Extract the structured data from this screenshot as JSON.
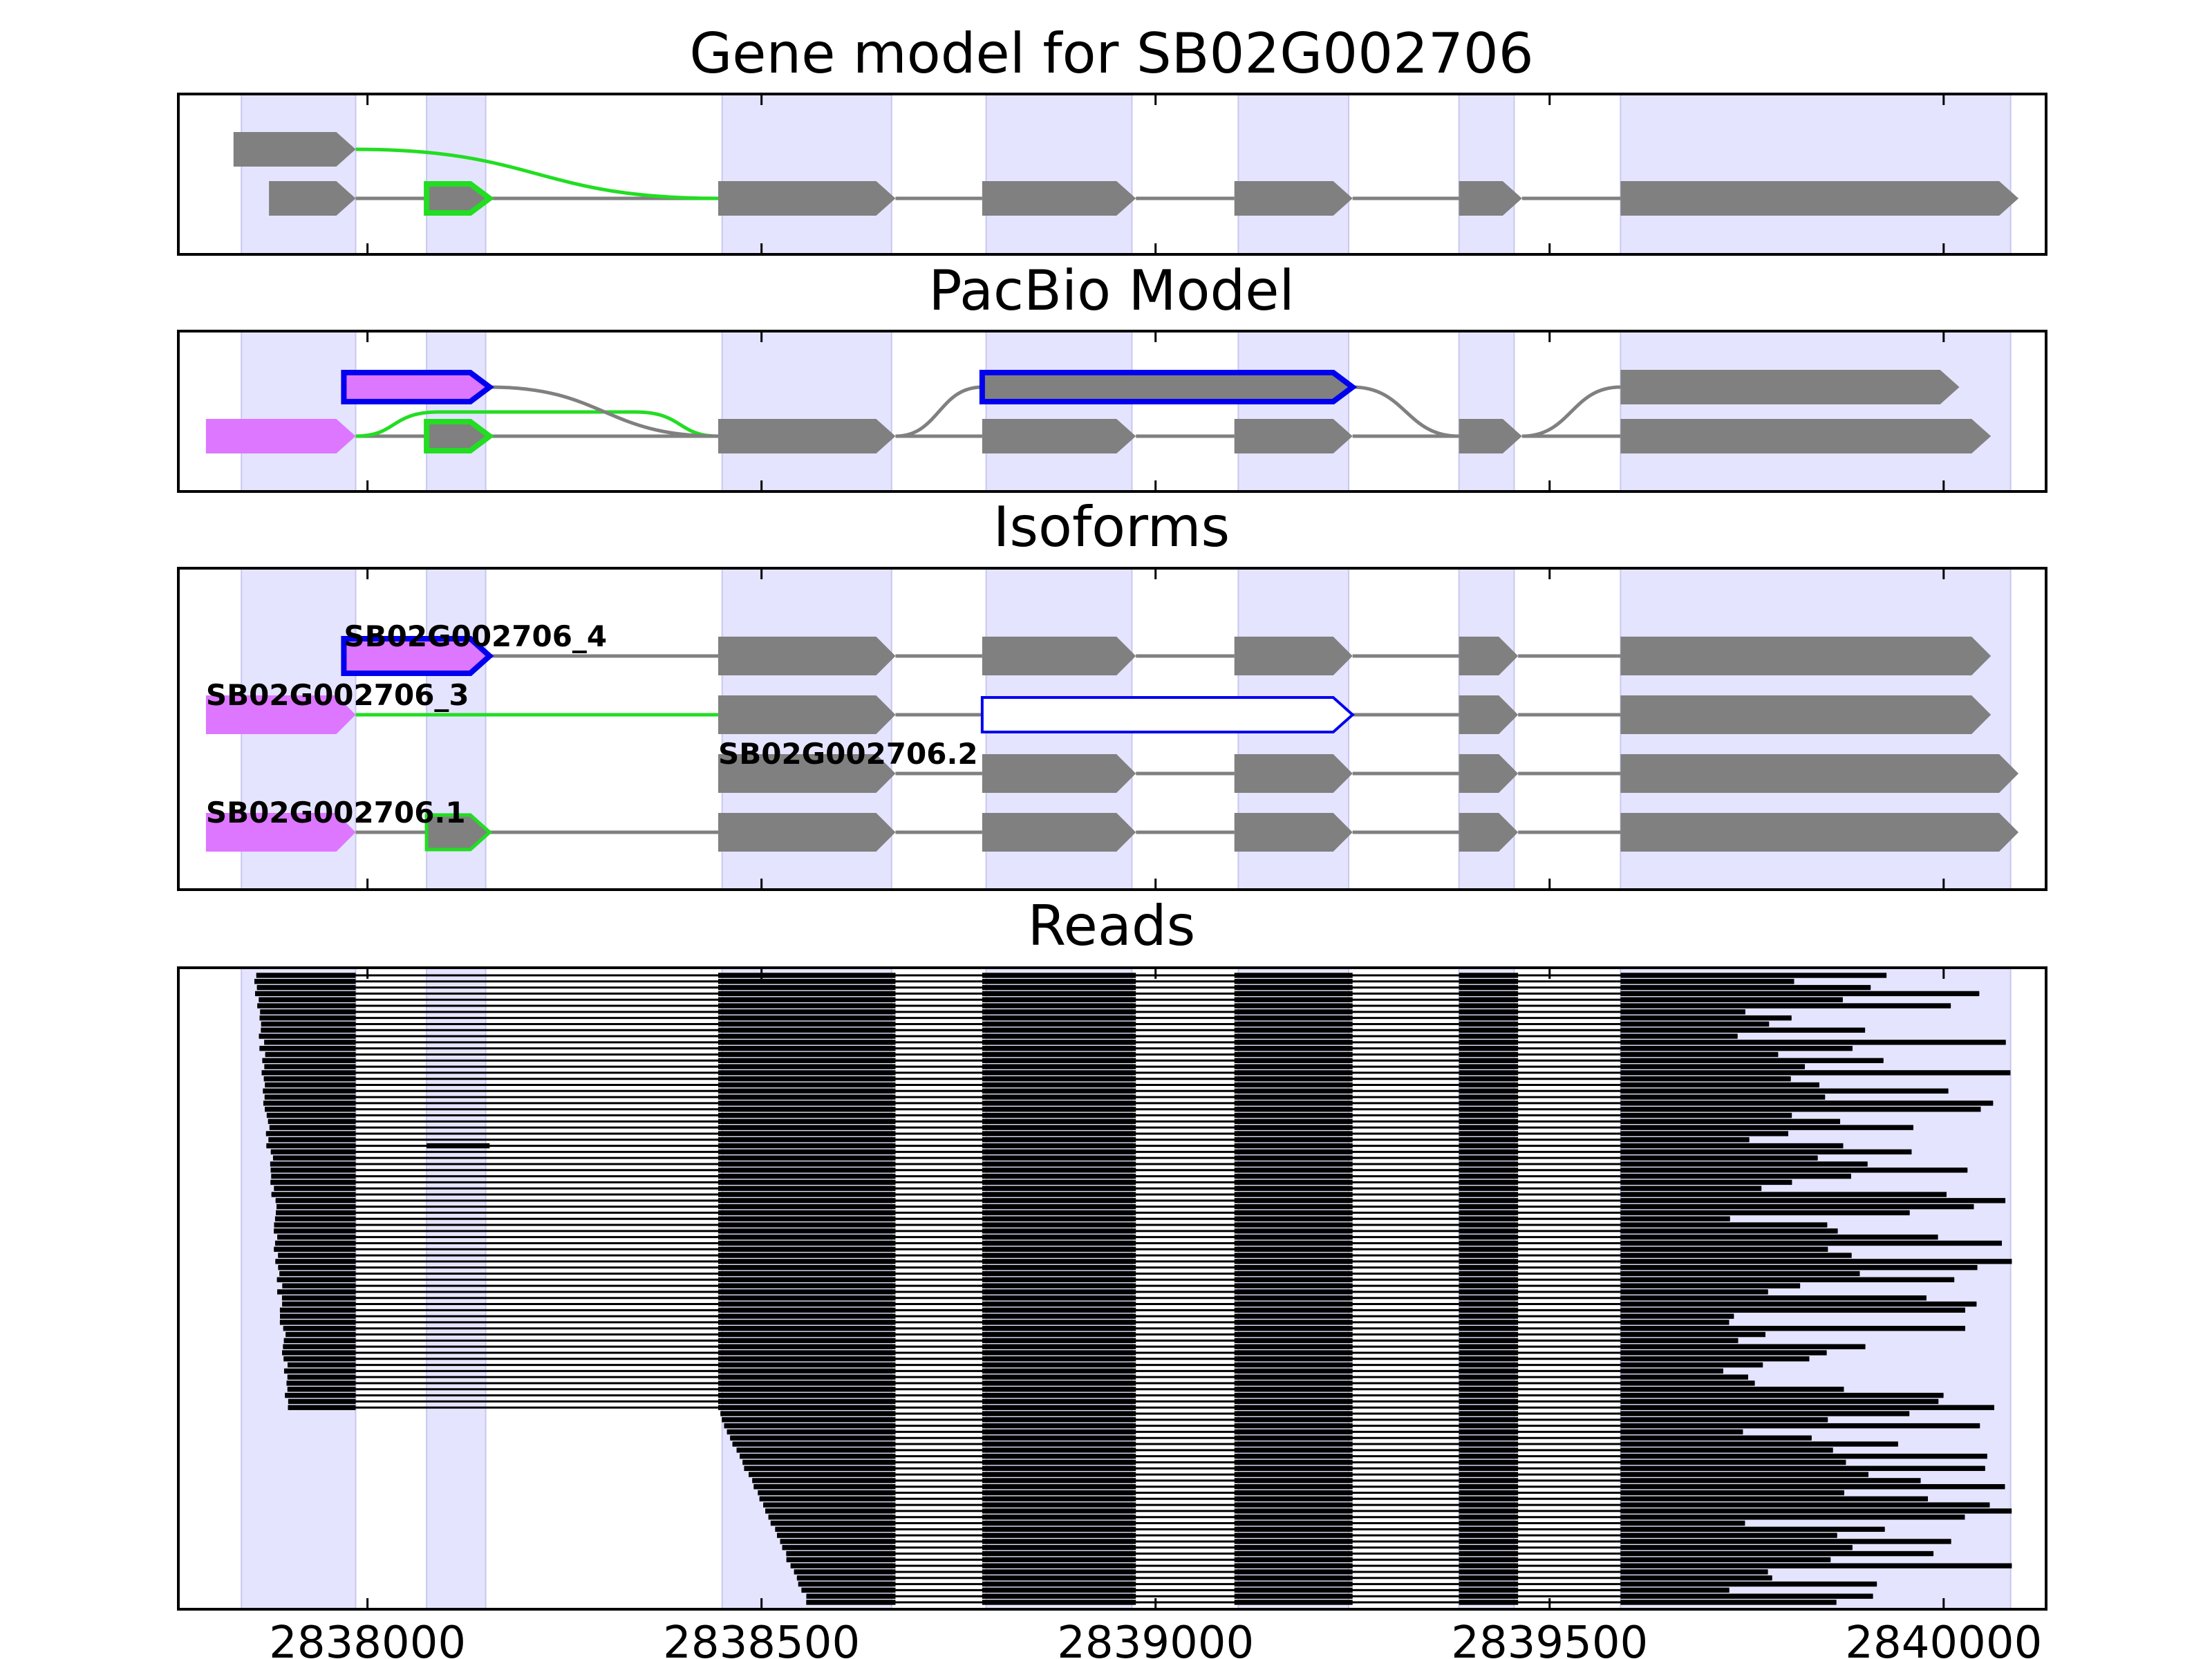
{
  "figure": {
    "panels": [
      {
        "id": "gene-model",
        "title": "Gene model for SB02G002706"
      },
      {
        "id": "pacbio",
        "title": "PacBio Model"
      },
      {
        "id": "isoforms",
        "title": "Isoforms"
      },
      {
        "id": "reads",
        "title": "Reads"
      }
    ],
    "xaxis": {
      "ticks": [
        2838000,
        2838500,
        2839000,
        2839500,
        2840000
      ],
      "xlim": [
        2837760,
        2840130
      ]
    },
    "colors": {
      "exon": "#808080",
      "highlight": "#e4e4ff",
      "green": "#22dd22",
      "blue": "#0000ee",
      "pink": "#dd77ff",
      "read": "#000000"
    }
  },
  "chart_data": {
    "type": "gene-structure",
    "highlighted_regions": [
      [
        2837840,
        2837985
      ],
      [
        2838075,
        2838150
      ],
      [
        2838450,
        2838665
      ],
      [
        2838785,
        2838970
      ],
      [
        2839105,
        2839245
      ],
      [
        2839385,
        2839455
      ],
      [
        2839590,
        2840085
      ]
    ],
    "gene_model": [
      {
        "exons": [
          [
            2837830,
            2837985
          ]
        ],
        "strand": "+"
      },
      {
        "exons": [
          [
            2837875,
            2837985
          ],
          [
            2838075,
            2838155
          ],
          [
            2838445,
            2838670
          ],
          [
            2838780,
            2838975
          ],
          [
            2839100,
            2839250
          ],
          [
            2839385,
            2839465
          ],
          [
            2839590,
            2840095
          ]
        ],
        "strand": "+"
      }
    ],
    "pacbio_model": [
      {
        "exons": [
          [
            2837970,
            2838155
          ],
          [
            2838780,
            2839250
          ],
          [
            2839590,
            2840020
          ]
        ]
      },
      {
        "exons": [
          [
            2837795,
            2837985
          ],
          [
            2838075,
            2838155
          ],
          [
            2838445,
            2838670
          ],
          [
            2838780,
            2838975
          ],
          [
            2839100,
            2839250
          ],
          [
            2839385,
            2839465
          ],
          [
            2839590,
            2840060
          ]
        ]
      }
    ],
    "isoforms": [
      {
        "name": "SB02G002706_4",
        "exons": [
          [
            2837970,
            2838155
          ],
          [
            2838445,
            2838670
          ],
          [
            2838780,
            2838975
          ],
          [
            2839100,
            2839250
          ],
          [
            2839385,
            2839460
          ],
          [
            2839590,
            2840060
          ]
        ]
      },
      {
        "name": "SB02G002706_3",
        "exons": [
          [
            2837795,
            2837985
          ],
          [
            2838445,
            2838670
          ],
          [
            2838780,
            2839250
          ],
          [
            2839385,
            2839460
          ],
          [
            2839590,
            2840060
          ]
        ]
      },
      {
        "name": "SB02G002706.2",
        "exons": [
          [
            2838445,
            2838670
          ],
          [
            2838780,
            2838975
          ],
          [
            2839100,
            2839250
          ],
          [
            2839385,
            2839460
          ],
          [
            2839590,
            2840095
          ]
        ]
      },
      {
        "name": "SB02G002706.1",
        "exons": [
          [
            2837795,
            2837985
          ],
          [
            2838075,
            2838155
          ],
          [
            2838445,
            2838670
          ],
          [
            2838780,
            2838975
          ],
          [
            2839100,
            2839250
          ],
          [
            2839385,
            2839460
          ],
          [
            2839590,
            2840095
          ]
        ]
      }
    ],
    "reads": {
      "count": 104,
      "start_range": [
        2837855,
        2838575
      ],
      "end_range": [
        2839720,
        2840090
      ]
    }
  }
}
